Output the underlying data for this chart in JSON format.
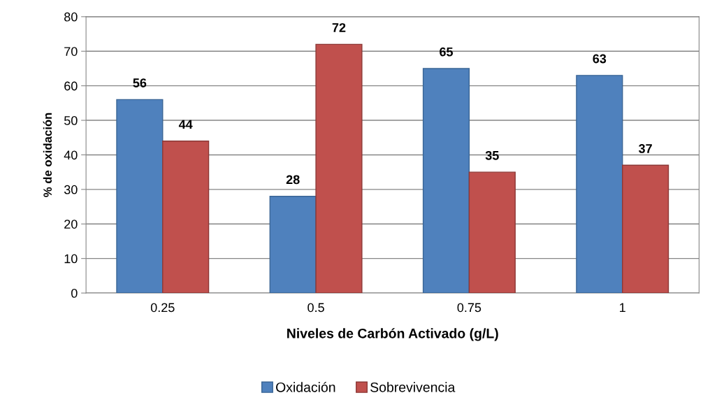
{
  "chart_data": {
    "type": "bar",
    "xlabel": "Niveles de Carbón Activado (g/L)",
    "ylabel": "% de oxidación",
    "categories": [
      "0.25",
      "0.5",
      "0.75",
      "1"
    ],
    "series": [
      {
        "name": "Oxidación",
        "color": "#4f81bd",
        "values": [
          56,
          28,
          65,
          63
        ]
      },
      {
        "name": "Sobrevivencia",
        "color": "#c0504d",
        "values": [
          44,
          72,
          35,
          37
        ]
      }
    ],
    "ylim": [
      0,
      80
    ],
    "yticks": [
      0,
      10,
      20,
      30,
      40,
      50,
      60,
      70,
      80
    ],
    "grid": "y",
    "legend": "bottom",
    "data_labels": true
  }
}
